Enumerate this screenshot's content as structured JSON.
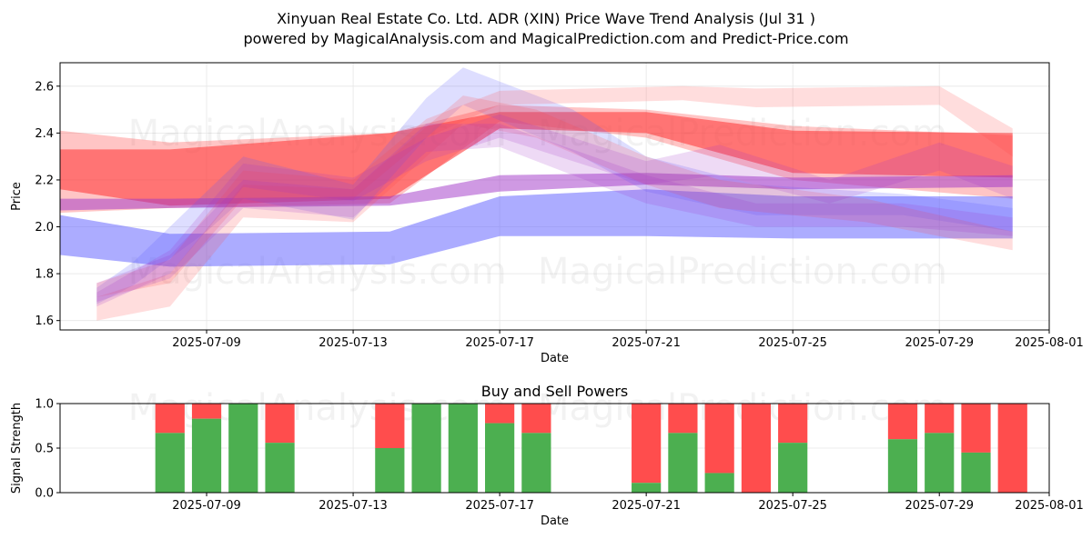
{
  "title_line1": "Xinyuan Real Estate Co. Ltd. ADR (XIN) Price Wave Trend Analysis (Jul 31 )",
  "title_line2": "powered by MagicalAnalysis.com and MagicalPrediction.com and Predict-Price.com",
  "watermark_left": "MagicalAnalysis.com",
  "watermark_right": "MagicalPrediction.com",
  "colors": {
    "red_band": "#ff4040",
    "blue_band": "#5a5aff",
    "buy": "#4caf50",
    "sell": "#ff4d4d",
    "grid": "#e6e6e6"
  },
  "chart_data": [
    {
      "type": "area",
      "title": "",
      "xlabel": "Date",
      "ylabel": "Price",
      "xlim": [
        "2025-07-05",
        "2025-08-01"
      ],
      "ylim": [
        1.56,
        2.7
      ],
      "x_ticks": [
        "2025-07-09",
        "2025-07-13",
        "2025-07-17",
        "2025-07-21",
        "2025-07-25",
        "2025-07-29",
        "2025-08-01"
      ],
      "y_ticks": [
        "1.6",
        "1.8",
        "2.0",
        "2.2",
        "2.4",
        "2.6"
      ],
      "grid": true,
      "series": [
        {
          "color": "red",
          "opacity": 0.6,
          "x": [
            "2025-07-05",
            "2025-07-08",
            "2025-07-14",
            "2025-07-17",
            "2025-07-21",
            "2025-07-25",
            "2025-07-31"
          ],
          "upper": [
            2.33,
            2.33,
            2.4,
            2.49,
            2.49,
            2.41,
            2.4
          ],
          "lower": [
            2.16,
            2.09,
            2.12,
            2.42,
            2.4,
            2.23,
            2.21
          ]
        },
        {
          "color": "red",
          "opacity": 0.3,
          "x": [
            "2025-07-05",
            "2025-07-08",
            "2025-07-14",
            "2025-07-17",
            "2025-07-21",
            "2025-07-25",
            "2025-07-31"
          ],
          "upper": [
            2.41,
            2.36,
            2.4,
            2.52,
            2.5,
            2.43,
            2.39
          ],
          "lower": [
            2.06,
            2.08,
            2.1,
            2.45,
            2.38,
            2.2,
            2.12
          ]
        },
        {
          "color": "blue",
          "opacity": 0.5,
          "x": [
            "2025-07-05",
            "2025-07-08",
            "2025-07-14",
            "2025-07-17",
            "2025-07-21",
            "2025-07-25",
            "2025-07-31"
          ],
          "upper": [
            2.05,
            1.97,
            1.98,
            2.13,
            2.16,
            2.13,
            2.13
          ],
          "lower": [
            1.88,
            1.83,
            1.84,
            1.96,
            1.96,
            1.95,
            1.95
          ]
        },
        {
          "color": "purple",
          "opacity": 0.5,
          "x": [
            "2025-07-05",
            "2025-07-08",
            "2025-07-14",
            "2025-07-17",
            "2025-07-21",
            "2025-07-25",
            "2025-07-31"
          ],
          "upper": [
            2.12,
            2.12,
            2.13,
            2.22,
            2.23,
            2.21,
            2.22
          ],
          "lower": [
            2.07,
            2.08,
            2.09,
            2.15,
            2.18,
            2.16,
            2.17
          ]
        },
        {
          "color": "blue",
          "opacity": 0.2,
          "x": [
            "2025-07-06",
            "2025-07-07",
            "2025-07-09",
            "2025-07-10",
            "2025-07-13",
            "2025-07-15",
            "2025-07-16",
            "2025-07-19",
            "2025-07-21",
            "2025-07-24",
            "2025-07-28",
            "2025-07-31"
          ],
          "upper": [
            1.74,
            1.85,
            2.15,
            2.3,
            2.18,
            2.55,
            2.68,
            2.5,
            2.3,
            2.18,
            2.14,
            2.08
          ],
          "lower": [
            1.67,
            1.75,
            1.98,
            2.12,
            2.03,
            2.38,
            2.52,
            2.32,
            2.15,
            2.05,
            2.05,
            1.98
          ]
        },
        {
          "color": "red",
          "opacity": 0.18,
          "x": [
            "2025-07-06",
            "2025-07-08",
            "2025-07-10",
            "2025-07-13",
            "2025-07-15",
            "2025-07-17",
            "2025-07-22",
            "2025-07-24",
            "2025-07-29",
            "2025-07-31"
          ],
          "upper": [
            1.76,
            1.86,
            2.24,
            2.2,
            2.46,
            2.58,
            2.6,
            2.59,
            2.6,
            2.42
          ],
          "lower": [
            1.7,
            1.76,
            2.12,
            2.12,
            2.38,
            2.52,
            2.54,
            2.51,
            2.52,
            2.3
          ]
        },
        {
          "color": "red",
          "opacity": 0.18,
          "x": [
            "2025-07-06",
            "2025-07-08",
            "2025-07-10",
            "2025-07-13",
            "2025-07-16",
            "2025-07-18",
            "2025-07-21",
            "2025-07-23",
            "2025-07-27",
            "2025-07-31"
          ],
          "upper": [
            1.7,
            1.8,
            2.18,
            2.16,
            2.56,
            2.5,
            2.3,
            2.2,
            2.12,
            1.98
          ],
          "lower": [
            1.6,
            1.66,
            2.04,
            2.02,
            2.44,
            2.38,
            2.18,
            2.08,
            2.02,
            1.9
          ]
        },
        {
          "color": "purple",
          "opacity": 0.18,
          "x": [
            "2025-07-06",
            "2025-07-08",
            "2025-07-10",
            "2025-07-13",
            "2025-07-15",
            "2025-07-17",
            "2025-07-21",
            "2025-07-23",
            "2025-07-26",
            "2025-07-29",
            "2025-07-31"
          ],
          "upper": [
            1.72,
            1.9,
            2.27,
            2.21,
            2.38,
            2.48,
            2.28,
            2.35,
            2.2,
            2.36,
            2.26
          ],
          "lower": [
            1.66,
            1.8,
            2.17,
            2.11,
            2.28,
            2.38,
            2.18,
            2.22,
            2.1,
            2.24,
            2.12
          ]
        },
        {
          "color": "purple",
          "opacity": 0.18,
          "x": [
            "2025-07-06",
            "2025-07-08",
            "2025-07-10",
            "2025-07-13",
            "2025-07-15",
            "2025-07-17",
            "2025-07-21",
            "2025-07-24",
            "2025-07-28",
            "2025-07-31"
          ],
          "upper": [
            1.76,
            1.88,
            2.2,
            2.16,
            2.44,
            2.44,
            2.22,
            2.1,
            2.1,
            2.04
          ],
          "lower": [
            1.68,
            1.78,
            2.08,
            2.04,
            2.32,
            2.34,
            2.1,
            2.0,
            2.0,
            1.96
          ]
        }
      ]
    },
    {
      "type": "bar",
      "title": "Buy and Sell Powers",
      "xlabel": "Date",
      "ylabel": "Signal Strength",
      "xlim": [
        "2025-07-05",
        "2025-08-01"
      ],
      "ylim": [
        0,
        1.0
      ],
      "x_ticks": [
        "2025-07-09",
        "2025-07-13",
        "2025-07-17",
        "2025-07-21",
        "2025-07-25",
        "2025-07-29",
        "2025-08-01"
      ],
      "y_ticks": [
        "0.0",
        "0.5",
        "1.0"
      ],
      "grid": true,
      "series": [
        {
          "name": "Buy",
          "color": "green"
        },
        {
          "name": "Sell",
          "color": "red"
        }
      ],
      "bars": [
        {
          "date": "2025-07-08",
          "buy": 0.67
        },
        {
          "date": "2025-07-09",
          "buy": 0.83
        },
        {
          "date": "2025-07-10",
          "buy": 1.0
        },
        {
          "date": "2025-07-11",
          "buy": 0.56
        },
        {
          "date": "2025-07-14",
          "buy": 0.5
        },
        {
          "date": "2025-07-15",
          "buy": 1.0
        },
        {
          "date": "2025-07-16",
          "buy": 1.0
        },
        {
          "date": "2025-07-17",
          "buy": 0.78
        },
        {
          "date": "2025-07-18",
          "buy": 0.67
        },
        {
          "date": "2025-07-21",
          "buy": 0.11
        },
        {
          "date": "2025-07-22",
          "buy": 0.67
        },
        {
          "date": "2025-07-23",
          "buy": 0.22
        },
        {
          "date": "2025-07-24",
          "buy": 0.0
        },
        {
          "date": "2025-07-25",
          "buy": 0.56
        },
        {
          "date": "2025-07-28",
          "buy": 0.6
        },
        {
          "date": "2025-07-29",
          "buy": 0.67
        },
        {
          "date": "2025-07-30",
          "buy": 0.45
        },
        {
          "date": "2025-07-31",
          "buy": 0.0
        }
      ]
    }
  ]
}
